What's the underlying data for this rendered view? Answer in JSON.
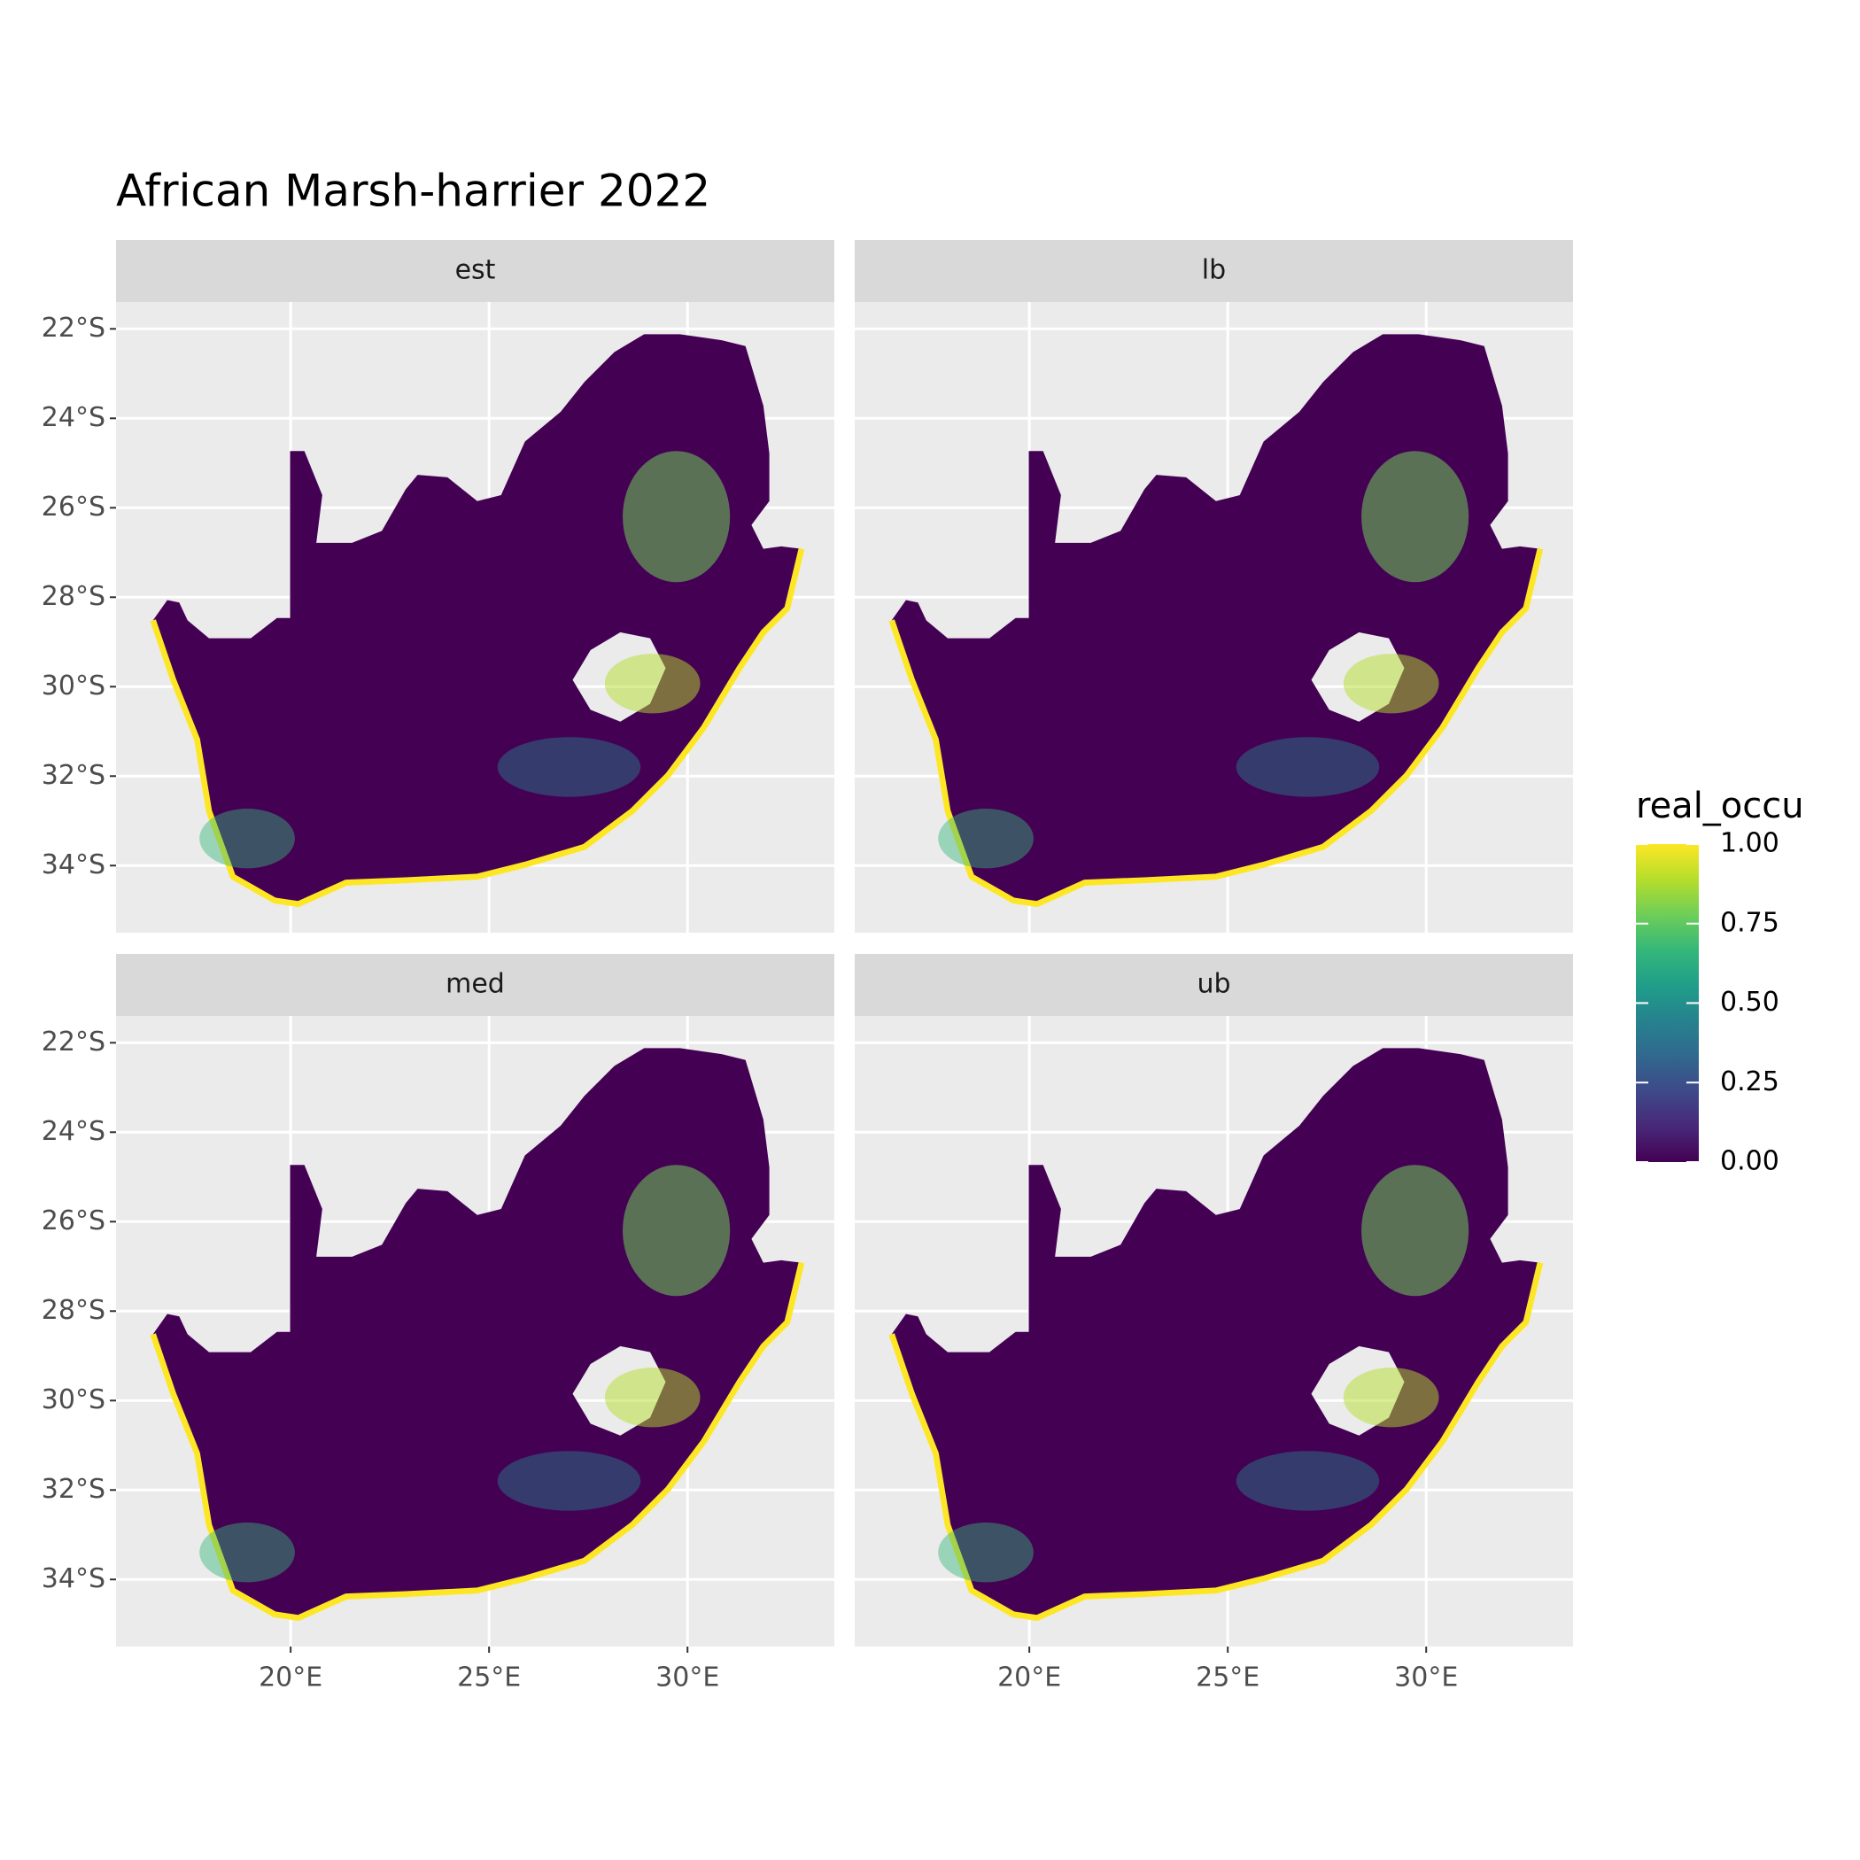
{
  "chart_data": {
    "type": "raster",
    "title": "African Marsh-harrier 2022",
    "facets": [
      "est",
      "lb",
      "med",
      "ub"
    ],
    "xlim": [
      15.6,
      33.7
    ],
    "ylim": [
      -35.5,
      -21.4
    ],
    "xticks": [
      {
        "value": 20,
        "label": "20°E"
      },
      {
        "value": 25,
        "label": "25°E"
      },
      {
        "value": 30,
        "label": "30°E"
      }
    ],
    "yticks": [
      {
        "value": -22,
        "label": "22°S"
      },
      {
        "value": -24,
        "label": "24°S"
      },
      {
        "value": -26,
        "label": "26°S"
      },
      {
        "value": -28,
        "label": "28°S"
      },
      {
        "value": -30,
        "label": "30°S"
      },
      {
        "value": -32,
        "label": "32°S"
      },
      {
        "value": -34,
        "label": "34°S"
      }
    ],
    "grid": true,
    "legend": {
      "title": "real_occu",
      "position": "right",
      "limits": [
        0,
        1
      ],
      "ticks": [
        {
          "value": 0,
          "label": "0.00"
        },
        {
          "value": 0.25,
          "label": "0.25"
        },
        {
          "value": 0.5,
          "label": "0.50"
        },
        {
          "value": 0.75,
          "label": "0.75"
        },
        {
          "value": 1,
          "label": "1.00"
        }
      ],
      "colors": [
        "#440154",
        "#482878",
        "#3e4989",
        "#31688e",
        "#26828e",
        "#1f9e89",
        "#35b779",
        "#6ece58",
        "#b5de2b",
        "#fde725"
      ]
    }
  }
}
